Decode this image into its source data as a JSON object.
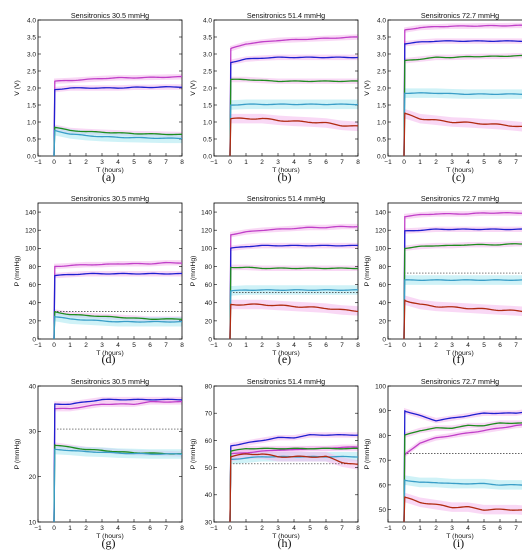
{
  "colors": {
    "magenta": "#c040c8",
    "blue": "#1f1fd0",
    "green": "#1e8c1e",
    "cyan": "#3a9ec8",
    "red": "#b02a10",
    "shade": "#f4b8ec",
    "shade_cyan": "#a8e8f0",
    "dotted": "#333333"
  },
  "panels": [
    {
      "caption": "(a)",
      "title": "Sensitronics 30.5 mmHg",
      "xlabel": "T (hours)",
      "ylabel": "V (V)",
      "ylim": [
        0,
        4.0
      ],
      "yticks": [
        "0.0",
        "0.5",
        "1.0",
        "1.5",
        "2.0",
        "2.5",
        "3.0",
        "3.5",
        "4.0"
      ],
      "xticks": [
        "−1",
        "0",
        "1",
        "2",
        "3",
        "4",
        "5",
        "6",
        "7",
        "8"
      ],
      "type": "voltage",
      "series": [
        {
          "color": "magenta",
          "values": [
            2.2,
            2.22,
            2.25,
            2.28,
            2.3,
            2.3,
            2.31,
            2.32,
            2.33
          ]
        },
        {
          "color": "blue",
          "values": [
            1.95,
            2.0,
            2.0,
            2.0,
            2.0,
            2.02,
            2.02,
            2.03,
            2.03
          ]
        },
        {
          "color": "green",
          "values": [
            0.85,
            0.75,
            0.72,
            0.7,
            0.68,
            0.66,
            0.65,
            0.64,
            0.63
          ]
        },
        {
          "color": "cyan",
          "values": [
            0.75,
            0.65,
            0.6,
            0.57,
            0.55,
            0.54,
            0.53,
            0.52,
            0.52
          ]
        }
      ]
    },
    {
      "caption": "(b)",
      "title": "Sensitronics 51.4 mmHg",
      "xlabel": "T (hours)",
      "ylabel": "V (V)",
      "ylim": [
        0,
        4.0
      ],
      "yticks": [
        "0.0",
        "0.5",
        "1.0",
        "1.5",
        "2.0",
        "2.5",
        "3.0",
        "3.5",
        "4.0"
      ],
      "xticks": [
        "−1",
        "0",
        "1",
        "2",
        "3",
        "4",
        "5",
        "6",
        "7",
        "8"
      ],
      "type": "voltage",
      "series": [
        {
          "color": "magenta",
          "values": [
            3.15,
            3.3,
            3.35,
            3.4,
            3.42,
            3.44,
            3.46,
            3.48,
            3.5
          ]
        },
        {
          "color": "blue",
          "values": [
            2.75,
            2.85,
            2.88,
            2.9,
            2.9,
            2.9,
            2.9,
            2.9,
            2.9
          ]
        },
        {
          "color": "green",
          "values": [
            2.25,
            2.25,
            2.22,
            2.2,
            2.2,
            2.2,
            2.2,
            2.2,
            2.2
          ]
        },
        {
          "color": "cyan",
          "values": [
            1.5,
            1.52,
            1.52,
            1.52,
            1.52,
            1.52,
            1.52,
            1.52,
            1.52
          ]
        },
        {
          "color": "red",
          "values": [
            1.1,
            1.1,
            1.1,
            1.05,
            1.02,
            1.0,
            0.97,
            0.9,
            0.87
          ]
        }
      ]
    },
    {
      "caption": "(c)",
      "title": "Sensitronics 72.7 mmHg",
      "xlabel": "T (hours)",
      "ylabel": "V (V)",
      "ylim": [
        0,
        4.0
      ],
      "yticks": [
        "0.0",
        "0.5",
        "1.0",
        "1.5",
        "2.0",
        "2.5",
        "3.0",
        "3.5",
        "4.0"
      ],
      "xticks": [
        "−1",
        "0",
        "1",
        "2",
        "3",
        "4",
        "5",
        "6",
        "7",
        "8"
      ],
      "type": "voltage",
      "series": [
        {
          "color": "magenta",
          "values": [
            3.7,
            3.78,
            3.8,
            3.82,
            3.82,
            3.83,
            3.83,
            3.84,
            3.84
          ]
        },
        {
          "color": "blue",
          "values": [
            3.3,
            3.35,
            3.38,
            3.38,
            3.38,
            3.38,
            3.38,
            3.38,
            3.38
          ]
        },
        {
          "color": "green",
          "values": [
            2.8,
            2.85,
            2.9,
            2.9,
            2.92,
            2.93,
            2.93,
            2.95,
            2.95
          ]
        },
        {
          "color": "cyan",
          "values": [
            1.85,
            1.85,
            1.85,
            1.83,
            1.82,
            1.82,
            1.82,
            1.82,
            1.82
          ]
        },
        {
          "color": "red",
          "values": [
            1.25,
            1.1,
            1.05,
            1.0,
            0.98,
            0.95,
            0.92,
            0.88,
            0.83
          ]
        }
      ]
    },
    {
      "caption": "(d)",
      "title": "Sensitronics 30.5 mmHg",
      "xlabel": "T (hours)",
      "ylabel": "P (mmHg)",
      "ylim": [
        0,
        150
      ],
      "yticks": [
        "0",
        "20",
        "40",
        "60",
        "80",
        "100",
        "120",
        "140"
      ],
      "xticks": [
        "−1",
        "0",
        "1",
        "2",
        "3",
        "4",
        "5",
        "6",
        "7",
        "8"
      ],
      "type": "pressure",
      "ref": 30.5,
      "series": [
        {
          "color": "magenta",
          "values": [
            80,
            81,
            82,
            82,
            83,
            83,
            83,
            84,
            84
          ]
        },
        {
          "color": "blue",
          "values": [
            70,
            71,
            72,
            72,
            72,
            72,
            72,
            72,
            72
          ]
        },
        {
          "color": "green",
          "values": [
            30,
            27,
            26,
            25,
            24,
            23,
            22,
            22,
            22
          ]
        },
        {
          "color": "cyan",
          "values": [
            25,
            22,
            21,
            20,
            19,
            19,
            19,
            19,
            19
          ]
        }
      ]
    },
    {
      "caption": "(e)",
      "title": "Sensitronics 51.4 mmHg",
      "xlabel": "T (hours)",
      "ylabel": "P (mmHg)",
      "ylim": [
        0,
        150
      ],
      "yticks": [
        "0",
        "20",
        "40",
        "60",
        "80",
        "100",
        "120",
        "140"
      ],
      "xticks": [
        "−1",
        "0",
        "1",
        "2",
        "3",
        "4",
        "5",
        "6",
        "7",
        "8"
      ],
      "type": "pressure",
      "ref": 51.4,
      "series": [
        {
          "color": "magenta",
          "values": [
            115,
            118,
            120,
            121,
            122,
            123,
            123,
            124,
            124
          ]
        },
        {
          "color": "blue",
          "values": [
            100,
            102,
            103,
            103,
            103,
            103,
            103,
            103,
            103
          ]
        },
        {
          "color": "green",
          "values": [
            79,
            79,
            78,
            78,
            78,
            78,
            78,
            78,
            78
          ]
        },
        {
          "color": "cyan",
          "values": [
            53,
            54,
            54,
            54,
            54,
            54,
            54,
            54,
            54
          ]
        },
        {
          "color": "red",
          "values": [
            38,
            38,
            38,
            37,
            36,
            35,
            34,
            32,
            31
          ]
        }
      ]
    },
    {
      "caption": "(f)",
      "title": "Sensitronics 72.7 mmHg",
      "xlabel": "T (hours)",
      "ylabel": "P (mmHg)",
      "ylim": [
        0,
        150
      ],
      "yticks": [
        "0",
        "20",
        "40",
        "60",
        "80",
        "100",
        "120",
        "140"
      ],
      "xticks": [
        "−1",
        "0",
        "1",
        "2",
        "3",
        "4",
        "5",
        "6",
        "7",
        "8"
      ],
      "type": "pressure",
      "ref": 72.7,
      "series": [
        {
          "color": "magenta",
          "values": [
            135,
            137,
            138,
            138,
            138,
            139,
            139,
            139,
            139
          ]
        },
        {
          "color": "blue",
          "values": [
            119,
            120,
            121,
            121,
            121,
            121,
            121,
            121,
            121
          ]
        },
        {
          "color": "green",
          "values": [
            100,
            102,
            103,
            103,
            104,
            104,
            104,
            105,
            105
          ]
        },
        {
          "color": "cyan",
          "values": [
            65,
            65,
            65,
            65,
            65,
            65,
            65,
            65,
            65
          ]
        },
        {
          "color": "red",
          "values": [
            43,
            38,
            36,
            35,
            34,
            33,
            32,
            31,
            30
          ]
        }
      ]
    },
    {
      "caption": "(g)",
      "title": "Sensitronics 30.5 mmHg",
      "xlabel": "T (hours)",
      "ylabel": "P (mmHg)",
      "ylim": [
        10,
        40
      ],
      "yticks": [
        "10",
        "20",
        "30",
        "40"
      ],
      "xticks": [
        "−1",
        "0",
        "1",
        "2",
        "3",
        "4",
        "5",
        "6",
        "7",
        "8"
      ],
      "type": "pressure",
      "ref": 30.5,
      "series": [
        {
          "color": "magenta",
          "values": [
            35,
            35,
            35.5,
            36,
            36,
            36,
            36.5,
            36.5,
            36.5
          ]
        },
        {
          "color": "blue",
          "values": [
            36,
            36,
            36.5,
            37,
            37,
            37,
            37,
            37,
            37
          ]
        },
        {
          "color": "green",
          "values": [
            27,
            26.5,
            26,
            25.8,
            25.5,
            25.3,
            25.2,
            25.1,
            25
          ]
        },
        {
          "color": "cyan",
          "values": [
            26,
            25.8,
            25.5,
            25.4,
            25.2,
            25.1,
            25,
            25,
            25
          ]
        }
      ]
    },
    {
      "caption": "(h)",
      "title": "Sensitronics 51.4 mmHg",
      "xlabel": "T (hours)",
      "ylabel": "P (mmHg)",
      "ylim": [
        30,
        80
      ],
      "yticks": [
        "30",
        "40",
        "50",
        "60",
        "70",
        "80"
      ],
      "xticks": [
        "−1",
        "0",
        "1",
        "2",
        "3",
        "4",
        "5",
        "6",
        "7",
        "8"
      ],
      "type": "pressure",
      "ref": 51.4,
      "series": [
        {
          "color": "magenta",
          "values": [
            55,
            55.5,
            56,
            56.5,
            56.5,
            57,
            57,
            57.5,
            57.5
          ]
        },
        {
          "color": "blue",
          "values": [
            58,
            59,
            60,
            61,
            61,
            62,
            62,
            62,
            62
          ]
        },
        {
          "color": "green",
          "values": [
            56,
            57,
            57,
            57,
            57,
            57,
            57,
            57,
            57
          ]
        },
        {
          "color": "cyan",
          "values": [
            53,
            53.5,
            54,
            54,
            54,
            54,
            54,
            54,
            54
          ]
        },
        {
          "color": "red",
          "values": [
            54,
            55,
            55,
            54,
            54,
            54,
            54,
            52,
            51
          ]
        }
      ]
    },
    {
      "caption": "(i)",
      "title": "Sensitronics 72.7 mmHg",
      "xlabel": "T (hours)",
      "ylabel": "P (mmHg)",
      "ylim": [
        45,
        100
      ],
      "yticks": [
        "50",
        "60",
        "70",
        "80",
        "90",
        "100"
      ],
      "xticks": [
        "−1",
        "0",
        "1",
        "2",
        "3",
        "4",
        "5",
        "6",
        "7",
        "8"
      ],
      "type": "pressure",
      "ref": 72.7,
      "series": [
        {
          "color": "magenta",
          "values": [
            72,
            77,
            79,
            80,
            81,
            82,
            83,
            84,
            84.5
          ]
        },
        {
          "color": "blue",
          "values": [
            90,
            88,
            86,
            87,
            88,
            89,
            89,
            89,
            90
          ]
        },
        {
          "color": "green",
          "values": [
            80,
            82,
            83,
            83,
            84,
            84,
            85,
            85,
            85
          ]
        },
        {
          "color": "cyan",
          "values": [
            62,
            61,
            61,
            60.5,
            60.5,
            60.5,
            60,
            60,
            60
          ]
        },
        {
          "color": "red",
          "values": [
            55,
            53,
            52,
            51,
            51,
            50,
            50,
            50,
            49.5
          ]
        }
      ]
    }
  ]
}
